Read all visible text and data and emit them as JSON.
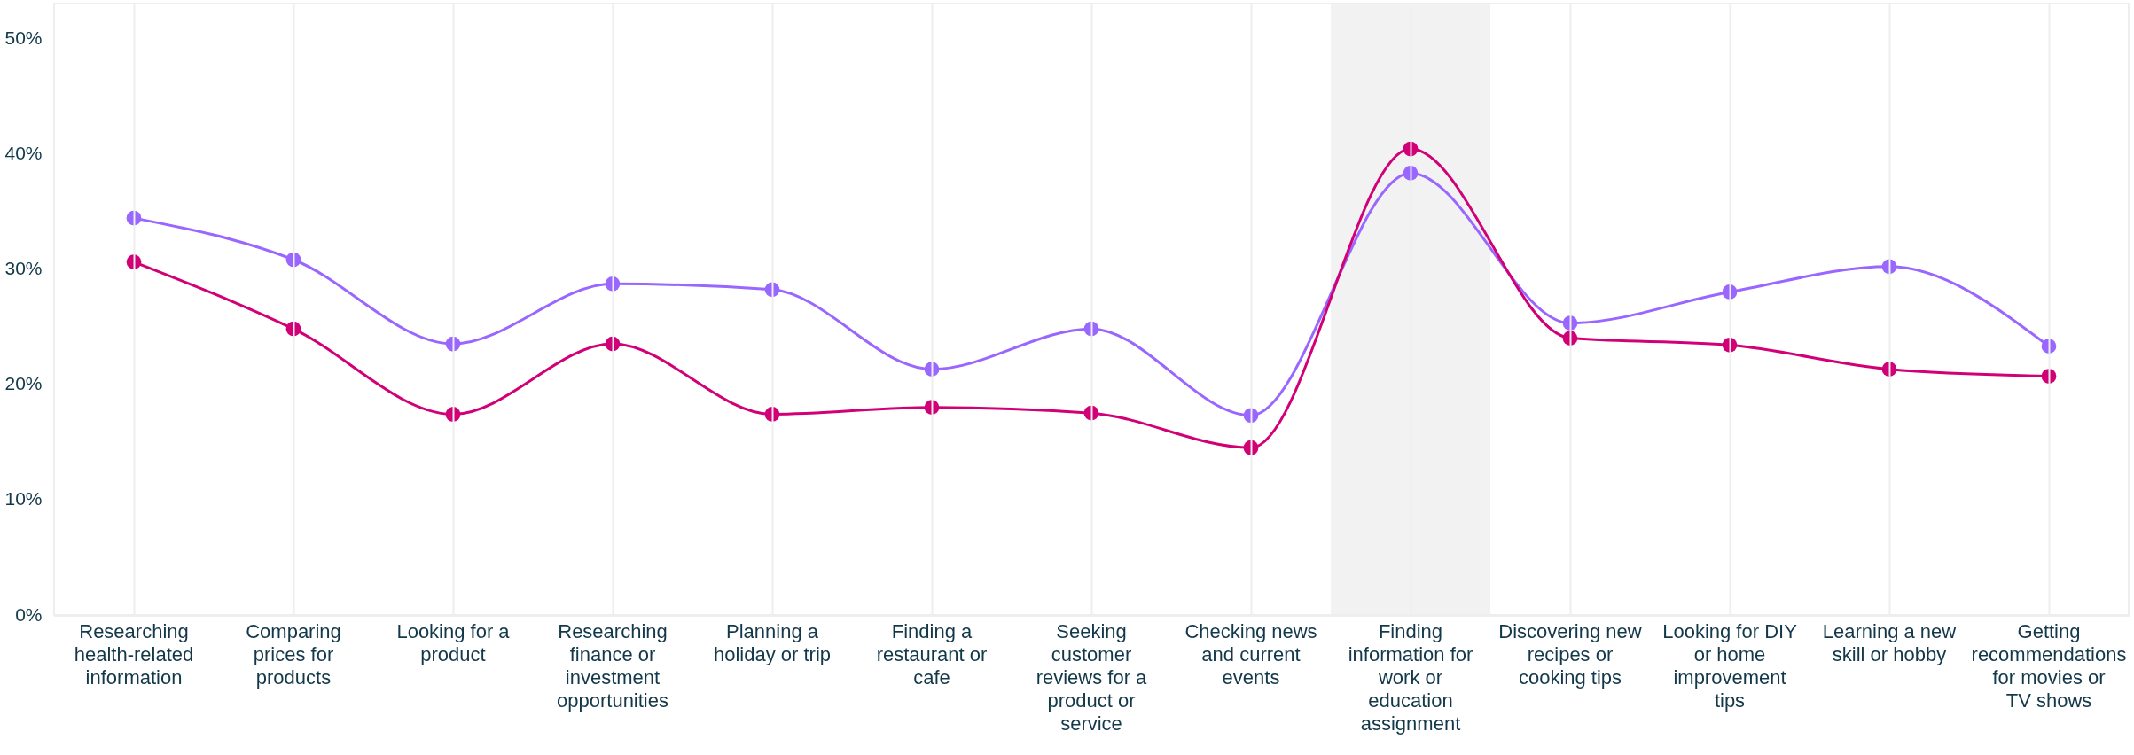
{
  "chart_data": {
    "type": "line",
    "categories": [
      "Researching health-related information",
      "Comparing prices for products",
      "Looking for a product",
      "Researching finance or investment opportunities",
      "Planning a holiday or trip",
      "Finding a restaurant or cafe",
      "Seeking customer reviews for a product or service",
      "Checking news and current events",
      "Finding information for work or education assignment",
      "Discovering new recipes or cooking tips",
      "Looking for DIY or home improvement tips",
      "Learning a new skill or hobby",
      "Getting recommendations for movies or TV shows"
    ],
    "series": [
      {
        "color": "#9966ff",
        "values": [
          34.4,
          30.8,
          23.5,
          28.7,
          28.2,
          21.3,
          24.8,
          17.3,
          38.3,
          25.3,
          28.0,
          30.2,
          23.3
        ]
      },
      {
        "color": "#d10076",
        "values": [
          30.6,
          24.8,
          17.4,
          23.5,
          17.4,
          18.0,
          17.5,
          14.5,
          40.4,
          24.0,
          23.4,
          21.3,
          20.7
        ]
      }
    ],
    "ylim": [
      0,
      53
    ],
    "yticks": [
      {
        "value": 0,
        "label": "0%"
      },
      {
        "value": 10,
        "label": "10%"
      },
      {
        "value": 20,
        "label": "20%"
      },
      {
        "value": 30,
        "label": "30%"
      },
      {
        "value": 40,
        "label": "40%"
      },
      {
        "value": 50,
        "label": "50%"
      }
    ],
    "bands": [
      {
        "axis": "x",
        "from": "Finding information for work or education assignment",
        "to": "Finding information for work or education assignment",
        "color": "#f2f2f2"
      }
    ],
    "grid": "x",
    "marker": "circle",
    "line_style": "solid"
  }
}
